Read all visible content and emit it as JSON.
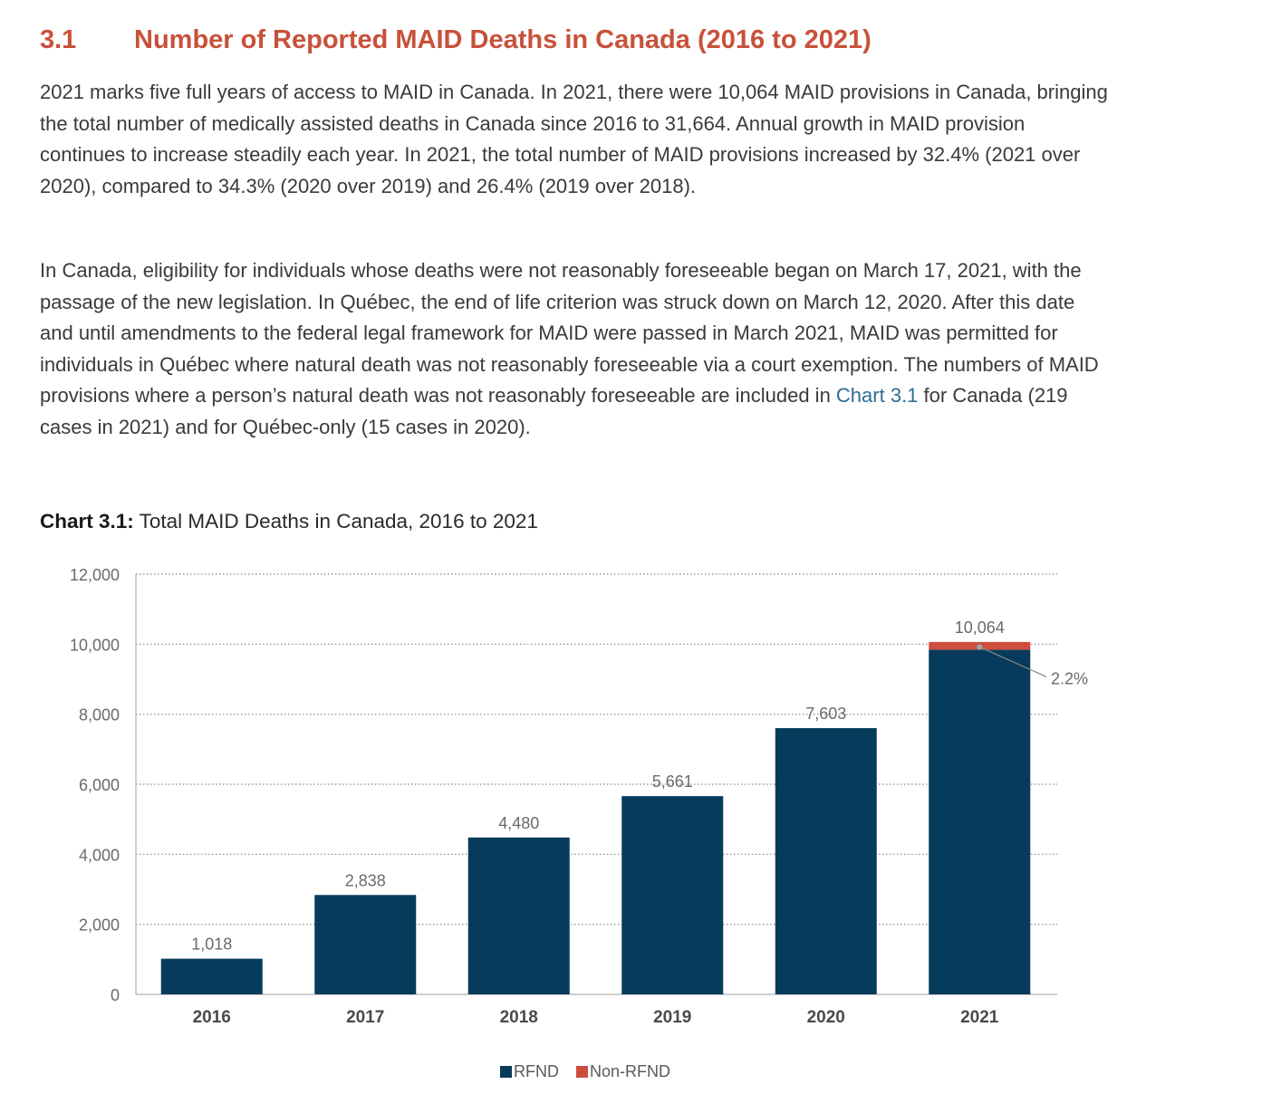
{
  "section": {
    "number": "3.1",
    "title": "Number of Reported MAID Deaths in Canada (2016 to 2021)"
  },
  "paragraphs": {
    "p1": "2021 marks five full years of access to MAID in Canada. In 2021, there were 10,064 MAID provisions in Canada, bringing the total number of medically assisted deaths in Canada since 2016 to 31,664. Annual growth in MAID provision continues to increase steadily each year. In 2021, the total number of MAID provisions increased by 32.4% (2021 over 2020), compared to 34.3% (2020 over 2019) and 26.4% (2019 over 2018).",
    "p2_before": "In Canada, eligibility for individuals whose deaths were not reasonably foreseeable began on March 17, 2021, with the passage of the new legislation. In Québec, the end of life criterion was struck down on March 12, 2020. After this date and until amendments to the federal legal framework for MAID were passed in March 2021, MAID was permitted for individuals in Québec where natural death was not reasonably foreseeable via a court exemption. The numbers of MAID provisions where a person’s natural death was not reasonably foreseeable are included in ",
    "p2_link": "Chart 3.1",
    "p2_after": " for Canada (219 cases in 2021) and for Québec-only (15 cases in 2020)."
  },
  "chart_caption": {
    "label": "Chart 3.1:",
    "text": " Total MAID Deaths in Canada, 2016 to 2021"
  },
  "chart_data": {
    "type": "bar",
    "stacked": true,
    "categories": [
      "2016",
      "2017",
      "2018",
      "2019",
      "2020",
      "2021"
    ],
    "series": [
      {
        "name": "RFND",
        "values": [
          1018,
          2838,
          4480,
          5661,
          7603,
          9845
        ],
        "color": "#063b5b"
      },
      {
        "name": "Non-RFND",
        "values": [
          0,
          0,
          0,
          0,
          0,
          219
        ],
        "color": "#cf4d3c"
      }
    ],
    "totals": [
      "1,018",
      "2,838",
      "4,480",
      "5,661",
      "7,603",
      "10,064"
    ],
    "annotation": "2.2%",
    "ylim": [
      0,
      12000
    ],
    "yticks": [
      0,
      2000,
      4000,
      6000,
      8000,
      10000,
      12000
    ],
    "ytick_labels": [
      "0",
      "2,000",
      "4,000",
      "6,000",
      "8,000",
      "10,000",
      "12,000"
    ],
    "grid": "dotted horizontal",
    "legend_position": "bottom"
  },
  "colors": {
    "heading": "#c8513a",
    "link": "#2f6c8f",
    "rfnd": "#063b5b",
    "non_rfnd": "#cf4d3c"
  }
}
